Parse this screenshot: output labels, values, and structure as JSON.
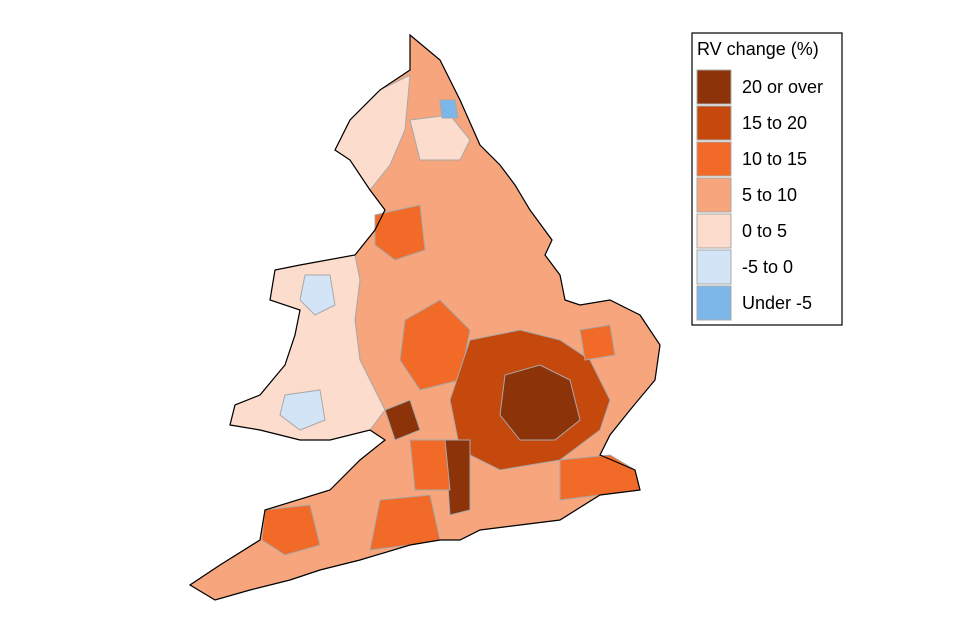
{
  "legend": {
    "title": "RV change (%)",
    "items": [
      {
        "label": "20 or over",
        "color": "#8c3309"
      },
      {
        "label": "15 to 20",
        "color": "#c5480c"
      },
      {
        "label": "10 to 15",
        "color": "#f26a28"
      },
      {
        "label": "5 to 10",
        "color": "#f6a57d"
      },
      {
        "label": "0 to 5",
        "color": "#fbdccd"
      },
      {
        "label": "-5 to 0",
        "color": "#d3e4f6"
      },
      {
        "label": "Under -5",
        "color": "#7db7ea"
      }
    ]
  }
}
